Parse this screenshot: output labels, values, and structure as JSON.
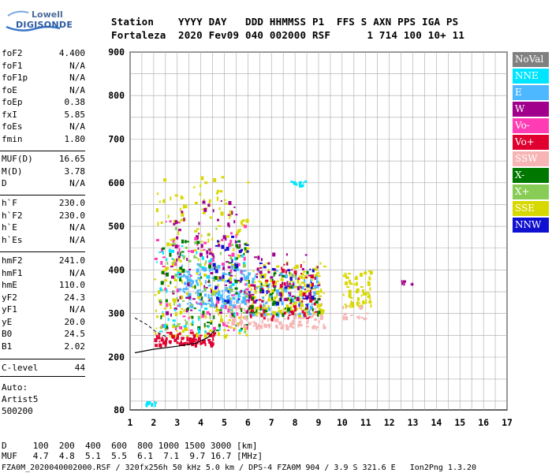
{
  "logo": {
    "line1": "Lowell",
    "line2": "DIGISONDE"
  },
  "header": {
    "row1": "Station    YYYY DAY   DDD HHMMSS P1  FFS S AXN PPS IGA PS",
    "row2": "Fortaleza  2020 Fev09 040 002000 RSF      1 714 100 10+ 11"
  },
  "params_group1": [
    {
      "k": "foF2",
      "v": "4.400"
    },
    {
      "k": "foF1",
      "v": "N/A"
    },
    {
      "k": "foF1p",
      "v": "N/A"
    },
    {
      "k": "foE",
      "v": "N/A"
    },
    {
      "k": "foEp",
      "v": "0.38"
    },
    {
      "k": "fxI",
      "v": "5.85"
    },
    {
      "k": "foEs",
      "v": "N/A"
    },
    {
      "k": "fmin",
      "v": "1.80"
    }
  ],
  "params_group2": [
    {
      "k": "MUF(D)",
      "v": "16.65"
    },
    {
      "k": "M(D)",
      "v": "3.78"
    },
    {
      "k": "D",
      "v": "N/A"
    }
  ],
  "params_group3": [
    {
      "k": "h`F",
      "v": "230.0"
    },
    {
      "k": "h`F2",
      "v": "230.0"
    },
    {
      "k": "h`E",
      "v": "N/A"
    },
    {
      "k": "h`Es",
      "v": "N/A"
    }
  ],
  "params_group4": [
    {
      "k": "hmF2",
      "v": "241.0"
    },
    {
      "k": "hmF1",
      "v": "N/A"
    },
    {
      "k": "hmE",
      "v": "110.0"
    },
    {
      "k": "yF2",
      "v": "24.3"
    },
    {
      "k": "yF1",
      "v": "N/A"
    },
    {
      "k": "yE",
      "v": "20.0"
    },
    {
      "k": "B0",
      "v": "24.5"
    },
    {
      "k": "B1",
      "v": "2.02"
    }
  ],
  "clevel": {
    "k": "C-level",
    "v": "44"
  },
  "auto": {
    "line1": "Auto:",
    "line2": "Artist5",
    "line3": "500200"
  },
  "legend": [
    {
      "label": "NoVal",
      "bg": "#808080",
      "fg": "#ffffff"
    },
    {
      "label": "NNE",
      "bg": "#00e5ff",
      "fg": "#ffffff"
    },
    {
      "label": "E",
      "bg": "#4db8ff",
      "fg": "#ffffff"
    },
    {
      "label": "W",
      "bg": "#a0008c",
      "fg": "#ffffff"
    },
    {
      "label": "Vo-",
      "bg": "#ff3cb4",
      "fg": "#ffffff"
    },
    {
      "label": "Vo+",
      "bg": "#e00030",
      "fg": "#ffffff"
    },
    {
      "label": "SSW",
      "bg": "#f7b4b4",
      "fg": "#ffffff"
    },
    {
      "label": "X-",
      "bg": "#007800",
      "fg": "#ffffff"
    },
    {
      "label": "X+",
      "bg": "#88cc55",
      "fg": "#ffffff"
    },
    {
      "label": "SSE",
      "bg": "#d8d800",
      "fg": "#ffffff"
    },
    {
      "label": "NNW",
      "bg": "#1010d0",
      "fg": "#ffffff"
    }
  ],
  "bottom": {
    "line1": "D     100  200  400  600  800 1000 1500 3000 [km]",
    "line2": "MUF   4.7  4.8  5.1  5.5  6.1  7.1  9.7 16.7 [MHz]",
    "line3": "FZA0M_2020040002000.RSF / 320fx256h 50 kHz 5.0 km / DPS-4 FZA0M 904 / 3.9 S 321.6 E   Ion2Png 1.3.20"
  },
  "chart_data": {
    "type": "scatter",
    "title": "",
    "xlabel": "",
    "ylabel": "",
    "xlim": [
      1,
      17
    ],
    "ylim": [
      80,
      900
    ],
    "x_ticks": [
      "1",
      "2",
      "3",
      "4",
      "5",
      "6",
      "7",
      "8",
      "9",
      "10",
      "11",
      "12",
      "13",
      "14",
      "15",
      "16",
      "17"
    ],
    "y_ticks": [
      "80",
      "200",
      "300",
      "400",
      "500",
      "600",
      "700",
      "800",
      "900"
    ],
    "grid": true,
    "legend_position": "right",
    "profile_curve": [
      [
        1.2,
        210
      ],
      [
        2,
        218
      ],
      [
        3,
        225
      ],
      [
        3.8,
        232
      ],
      [
        4.3,
        245
      ],
      [
        4.6,
        262
      ]
    ],
    "profile_dashed": [
      [
        1.2,
        290
      ],
      [
        1.7,
        275
      ],
      [
        2.1,
        258
      ],
      [
        2.6,
        245
      ]
    ],
    "clusters": [
      {
        "name": "SSE",
        "color": "#d8d800",
        "fx": [
          2.0,
          6.0
        ],
        "h": [
          250,
          620
        ],
        "n": 220
      },
      {
        "name": "Vo+",
        "color": "#e00030",
        "fx": [
          2.0,
          4.6
        ],
        "h": [
          230,
          260
        ],
        "n": 90
      },
      {
        "name": "E",
        "color": "#4db8ff",
        "fx": [
          3.0,
          6.0
        ],
        "h": [
          320,
          420
        ],
        "n": 160
      },
      {
        "name": "W",
        "color": "#a0008c",
        "fx": [
          2.5,
          6.0
        ],
        "h": [
          300,
          560
        ],
        "n": 90
      },
      {
        "name": "Vo-",
        "color": "#ff3cb4",
        "fx": [
          2.0,
          6.0
        ],
        "h": [
          260,
          520
        ],
        "n": 80
      },
      {
        "name": "X-",
        "color": "#007800",
        "fx": [
          2.2,
          6.0
        ],
        "h": [
          260,
          480
        ],
        "n": 60
      },
      {
        "name": "X+",
        "color": "#88cc55",
        "fx": [
          2.2,
          6.0
        ],
        "h": [
          260,
          500
        ],
        "n": 50
      },
      {
        "name": "NNE",
        "color": "#00e5ff",
        "fx": [
          2.0,
          6.0
        ],
        "h": [
          260,
          460
        ],
        "n": 50
      },
      {
        "name": "NNW",
        "color": "#1010d0",
        "fx": [
          4.5,
          6.0
        ],
        "h": [
          330,
          480
        ],
        "n": 30
      },
      {
        "name": "SSW",
        "color": "#f7b4b4",
        "fx": [
          5.0,
          9.2
        ],
        "h": [
          270,
          330
        ],
        "n": 130
      },
      {
        "name": "SSE",
        "color": "#d8d800",
        "fx": [
          6.0,
          9.2
        ],
        "h": [
          300,
          420
        ],
        "n": 200
      },
      {
        "name": "E",
        "color": "#4db8ff",
        "fx": [
          6.0,
          9.0
        ],
        "h": [
          300,
          400
        ],
        "n": 90
      },
      {
        "name": "Vo+",
        "color": "#e00030",
        "fx": [
          6.0,
          9.0
        ],
        "h": [
          290,
          420
        ],
        "n": 70
      },
      {
        "name": "W",
        "color": "#a0008c",
        "fx": [
          6.0,
          9.0
        ],
        "h": [
          330,
          440
        ],
        "n": 50
      },
      {
        "name": "X-",
        "color": "#007800",
        "fx": [
          6.0,
          9.0
        ],
        "h": [
          300,
          400
        ],
        "n": 40
      },
      {
        "name": "NNW",
        "color": "#1010d0",
        "fx": [
          6.0,
          9.0
        ],
        "h": [
          320,
          420
        ],
        "n": 25
      },
      {
        "name": "SSE",
        "color": "#d8d800",
        "fx": [
          10.0,
          11.2
        ],
        "h": [
          320,
          400
        ],
        "n": 60
      },
      {
        "name": "SSW",
        "color": "#f7b4b4",
        "fx": [
          10.0,
          11.0
        ],
        "h": [
          290,
          320
        ],
        "n": 15
      },
      {
        "name": "NNE",
        "color": "#00e5ff",
        "fx": [
          7.8,
          8.5
        ],
        "h": [
          596,
          606
        ],
        "n": 12
      },
      {
        "name": "W",
        "color": "#a0008c",
        "fx": [
          12.3,
          13.2
        ],
        "h": [
          368,
          378
        ],
        "n": 6
      },
      {
        "name": "NNE",
        "color": "#00e5ff",
        "fx": [
          1.6,
          2.1
        ],
        "h": [
          95,
          100
        ],
        "n": 10
      }
    ]
  }
}
